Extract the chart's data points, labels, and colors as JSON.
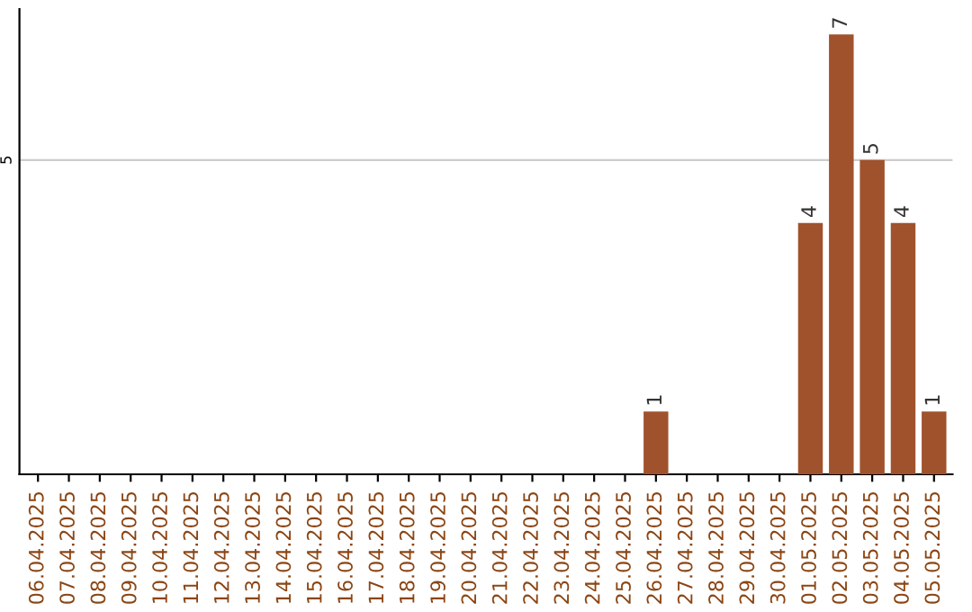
{
  "chart_data": {
    "type": "bar",
    "categories": [
      "06.04.2025",
      "07.04.2025",
      "08.04.2025",
      "09.04.2025",
      "10.04.2025",
      "11.04.2025",
      "12.04.2025",
      "13.04.2025",
      "14.04.2025",
      "15.04.2025",
      "16.04.2025",
      "17.04.2025",
      "18.04.2025",
      "19.04.2025",
      "20.04.2025",
      "21.04.2025",
      "22.04.2025",
      "23.04.2025",
      "24.04.2025",
      "25.04.2025",
      "26.04.2025",
      "27.04.2025",
      "28.04.2025",
      "29.04.2025",
      "30.04.2025",
      "01.05.2025",
      "02.05.2025",
      "03.05.2025",
      "04.05.2025",
      "05.05.2025"
    ],
    "values": [
      null,
      null,
      null,
      null,
      null,
      null,
      null,
      null,
      null,
      null,
      null,
      null,
      null,
      null,
      null,
      null,
      null,
      null,
      null,
      null,
      1,
      null,
      null,
      null,
      null,
      4,
      7,
      5,
      4,
      1
    ],
    "color": "#a0522d",
    "data_labels": true,
    "ylim": [
      0,
      7.4
    ],
    "yticks": [
      5
    ],
    "grid": "y"
  }
}
